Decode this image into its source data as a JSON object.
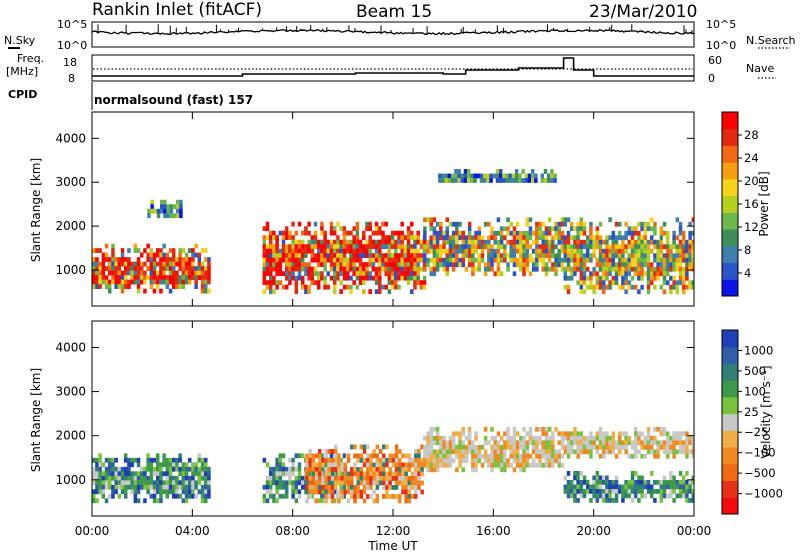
{
  "header": {
    "title": "Rankin Inlet (fitACF)",
    "beam": "Beam 15",
    "date": "23/Mar/2010"
  },
  "params": {
    "nsky_label": "N.Sky",
    "nsearch_label": "N.Search",
    "freq_label_line1": "Freq.",
    "freq_label_line2": "[MHz]",
    "nave_label": "Nave",
    "cpid_label": "CPID",
    "cpid_value": "normalsound (fast) 157",
    "noise_ticks_left": [
      "10^5",
      "10^0"
    ],
    "noise_ticks_right": [
      "10^5",
      "10^0"
    ],
    "freq_ticks": [
      "18",
      "8"
    ],
    "nave_ticks": [
      "60",
      "0"
    ]
  },
  "chart_data": [
    {
      "type": "heatmap",
      "name": "power-panel",
      "ylabel": "Slant Range [km]",
      "xlabel": "Time UT",
      "x_ticks": [
        "00:00",
        "04:00",
        "08:00",
        "12:00",
        "16:00",
        "20:00",
        "00:00"
      ],
      "xlim": [
        0,
        24
      ],
      "y_ticks": [
        "1000",
        "2000",
        "3000",
        "4000"
      ],
      "ylim": [
        180,
        4600
      ],
      "colorbar": {
        "label": "Power [dB]",
        "ticks": [
          "4",
          "8",
          "12",
          "16",
          "20",
          "24",
          "28"
        ],
        "range": [
          0,
          30
        ],
        "colors": [
          "#0a14e6",
          "#2a55c8",
          "#3f7fb0",
          "#3d8e5c",
          "#6cb84a",
          "#b7cf1f",
          "#f7d21b",
          "#f5a10f",
          "#ef6a12",
          "#e52a14",
          "#ff0000"
        ]
      },
      "echo_regions": [
        {
          "t0": 0.0,
          "t1": 4.6,
          "r0": 500,
          "r1": 1600,
          "level": "high"
        },
        {
          "t0": 2.2,
          "t1": 3.6,
          "r0": 2200,
          "r1": 2600,
          "level": "low"
        },
        {
          "t0": 6.8,
          "t1": 10.0,
          "r0": 500,
          "r1": 2100,
          "level": "high"
        },
        {
          "t0": 10.0,
          "t1": 13.2,
          "r0": 500,
          "r1": 2100,
          "level": "high"
        },
        {
          "t0": 13.2,
          "t1": 18.8,
          "r0": 900,
          "r1": 2200,
          "level": "mid"
        },
        {
          "t0": 18.8,
          "t1": 24.0,
          "r0": 500,
          "r1": 2200,
          "level": "mid"
        },
        {
          "t0": 13.8,
          "t1": 18.5,
          "r0": 3000,
          "r1": 3300,
          "level": "low"
        }
      ]
    },
    {
      "type": "heatmap",
      "name": "velocity-panel",
      "ylabel": "Slant Range [km]",
      "xlabel": "Time UT",
      "x_ticks": [
        "00:00",
        "04:00",
        "08:00",
        "12:00",
        "16:00",
        "20:00",
        "00:00"
      ],
      "xlim": [
        0,
        24
      ],
      "y_ticks": [
        "1000",
        "2000",
        "3000",
        "4000"
      ],
      "ylim": [
        180,
        4600
      ],
      "colorbar": {
        "label": "Velocity [m s⁻¹]",
        "ticks": [
          "1000",
          "500",
          "100",
          "25",
          "−25",
          "−100",
          "−500",
          "−1000"
        ],
        "colors": [
          "#1f3fb4",
          "#2f5fa8",
          "#2f7f78",
          "#3e9a4a",
          "#78c23e",
          "#c8c8c8",
          "#f0ae48",
          "#f08a20",
          "#ef6a12",
          "#e83018",
          "#f20c0c"
        ]
      },
      "echo_regions": [
        {
          "t0": 0.0,
          "t1": 4.6,
          "r0": 500,
          "r1": 1600,
          "level": "pos"
        },
        {
          "t0": 6.8,
          "t1": 10.0,
          "r0": 500,
          "r1": 1600,
          "level": "pos"
        },
        {
          "t0": 8.5,
          "t1": 13.2,
          "r0": 500,
          "r1": 1800,
          "level": "neg"
        },
        {
          "t0": 13.2,
          "t1": 18.8,
          "r0": 1200,
          "r1": 2200,
          "level": "zero"
        },
        {
          "t0": 18.8,
          "t1": 24.0,
          "r0": 500,
          "r1": 1200,
          "level": "pos"
        },
        {
          "t0": 18.8,
          "t1": 24.0,
          "r0": 1500,
          "r1": 2200,
          "level": "zero"
        }
      ]
    }
  ]
}
